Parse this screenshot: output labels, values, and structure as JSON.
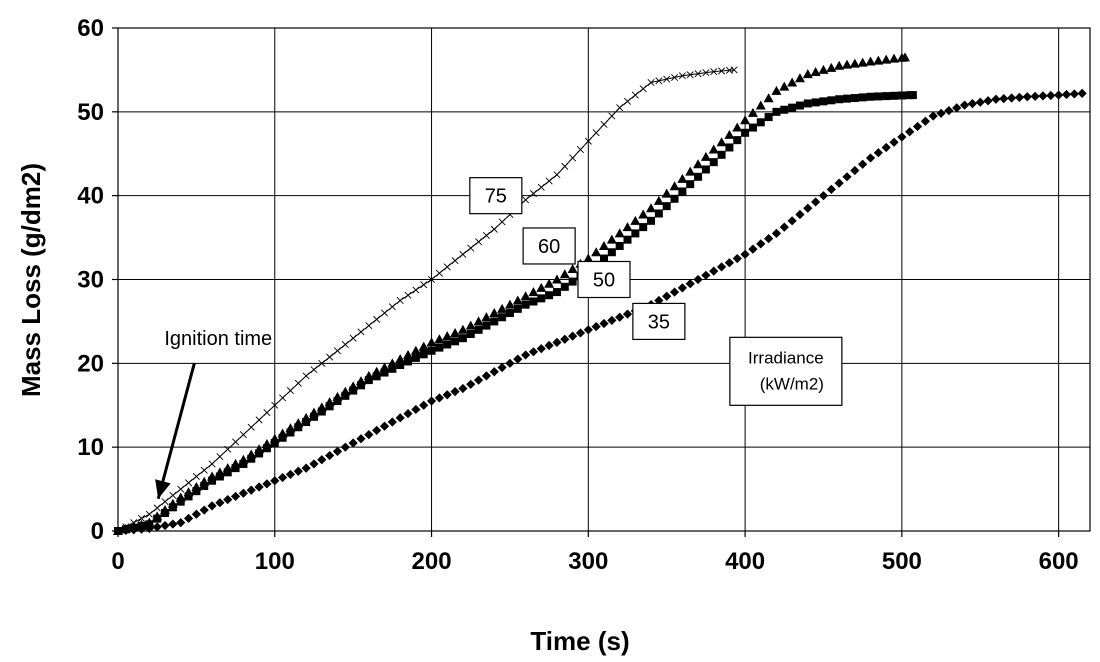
{
  "chart_data": {
    "type": "scatter",
    "xlabel": "Time (s)",
    "ylabel": "Mass Loss (g/dm2)",
    "xlim": [
      0,
      620
    ],
    "ylim": [
      0,
      60
    ],
    "xticks": [
      0,
      100,
      200,
      300,
      400,
      500,
      600
    ],
    "yticks": [
      0,
      10,
      20,
      30,
      40,
      50,
      60
    ],
    "grid": true,
    "series": [
      {
        "name": "75",
        "marker": "x",
        "line": true,
        "x": [
          0,
          20,
          40,
          60,
          80,
          100,
          120,
          140,
          160,
          180,
          200,
          220,
          240,
          260,
          280,
          300,
          320,
          340,
          360,
          380,
          393
        ],
        "y": [
          0,
          2,
          5,
          8,
          11.5,
          15,
          18.5,
          21.5,
          24.5,
          27.5,
          30,
          33,
          36,
          39.5,
          42.5,
          46.5,
          50.5,
          53.5,
          54.3,
          54.8,
          55
        ]
      },
      {
        "name": "60",
        "marker": "triangle",
        "x": [
          0,
          20,
          40,
          60,
          80,
          100,
          120,
          140,
          160,
          180,
          200,
          220,
          240,
          260,
          280,
          300,
          320,
          340,
          360,
          380,
          400,
          420,
          440,
          460,
          480,
          502
        ],
        "y": [
          0,
          1,
          4,
          6.5,
          8.5,
          11,
          13.5,
          16,
          18.5,
          20.5,
          22.5,
          24,
          26,
          28,
          30,
          32.5,
          35.5,
          38.5,
          42,
          45.5,
          49,
          52.5,
          54.5,
          55.5,
          56,
          56.5
        ]
      },
      {
        "name": "50",
        "marker": "square",
        "x": [
          0,
          20,
          40,
          60,
          80,
          100,
          120,
          140,
          160,
          180,
          200,
          220,
          240,
          260,
          280,
          300,
          320,
          340,
          360,
          380,
          400,
          420,
          440,
          460,
          480,
          507
        ],
        "y": [
          0,
          0.8,
          3.5,
          6,
          8,
          10.5,
          13,
          15.5,
          18,
          19.8,
          21.5,
          23,
          25,
          27,
          28.5,
          31,
          34,
          37,
          40.5,
          44,
          47.5,
          50,
          51,
          51.5,
          51.8,
          52
        ]
      },
      {
        "name": "35",
        "marker": "diamond",
        "x": [
          0,
          20,
          40,
          60,
          80,
          100,
          120,
          140,
          160,
          180,
          200,
          220,
          240,
          260,
          280,
          300,
          320,
          340,
          360,
          380,
          400,
          420,
          440,
          460,
          480,
          500,
          520,
          540,
          560,
          580,
          600,
          615
        ],
        "y": [
          0,
          0.3,
          1,
          3,
          4.5,
          6,
          7.5,
          9.5,
          11.5,
          13.5,
          15.5,
          17,
          19,
          21,
          22.5,
          24,
          25.5,
          27,
          29,
          31,
          33,
          35.5,
          38.5,
          41.5,
          44.5,
          47,
          49.5,
          50.8,
          51.5,
          51.8,
          52,
          52.2
        ]
      }
    ],
    "annotations": [
      {
        "text": "Ignition time",
        "arrow_to": [
          18,
          6
        ],
        "label_at": [
          20,
          23
        ]
      },
      {
        "text": "75",
        "boxed": true,
        "at": [
          241,
          40
        ]
      },
      {
        "text": "60",
        "boxed": true,
        "at": [
          275,
          34
        ]
      },
      {
        "text": "50",
        "boxed": true,
        "at": [
          310,
          30
        ]
      },
      {
        "text": "35",
        "boxed": true,
        "at": [
          345,
          25
        ]
      },
      {
        "text": "Irradiance",
        "boxed": true,
        "at": [
          426,
          20
        ],
        "line2": "(kW/m2)"
      }
    ]
  }
}
